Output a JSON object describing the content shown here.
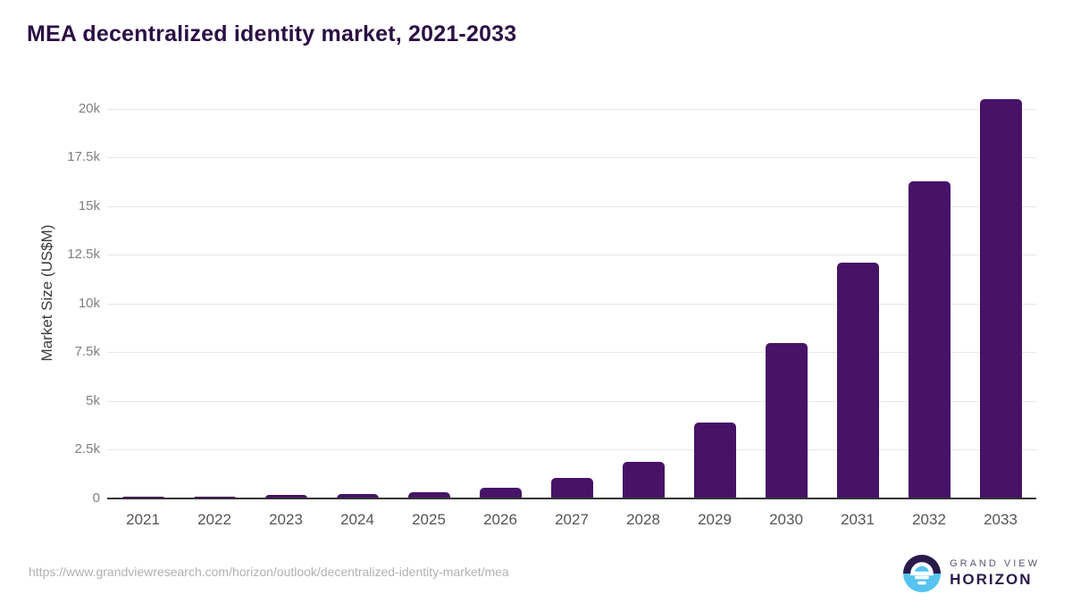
{
  "page": {
    "title": "MEA decentralized identity market, 2021-2033",
    "source_url": "https://www.grandviewresearch.com/horizon/outlook/decentralized-identity-market/mea",
    "logo": {
      "top_text": "GRAND VIEW",
      "bottom_text": "HORIZON"
    }
  },
  "colors": {
    "bar": "#461367",
    "title_text": "#2b0f44",
    "gridline": "#e7e7e7",
    "axis_line": "#333333",
    "y_tick_text": "#7f7f7f",
    "x_tick_text": "#555555",
    "axis_title_text": "#3a3a3a",
    "url_text": "#b1b1b1",
    "logo_purple": "#2a1a4a",
    "logo_blue": "#56c3f0"
  },
  "chart_data": {
    "type": "bar",
    "title": "MEA decentralized identity market, 2021-2033",
    "xlabel": "",
    "ylabel": "Market Size (US$M)",
    "unit": "US$M",
    "categories": [
      "2021",
      "2022",
      "2023",
      "2024",
      "2025",
      "2026",
      "2027",
      "2028",
      "2029",
      "2030",
      "2031",
      "2032",
      "2033"
    ],
    "values": [
      95,
      115,
      180,
      220,
      335,
      530,
      1040,
      1900,
      3900,
      8000,
      12100,
      16300,
      20500
    ],
    "ylim": [
      0,
      21100
    ],
    "yticks": [
      {
        "value": 0,
        "label": "0"
      },
      {
        "value": 2500,
        "label": "2.5k"
      },
      {
        "value": 5000,
        "label": "5k"
      },
      {
        "value": 7500,
        "label": "7.5k"
      },
      {
        "value": 10000,
        "label": "10k"
      },
      {
        "value": 12500,
        "label": "12.5k"
      },
      {
        "value": 15000,
        "label": "15k"
      },
      {
        "value": 17500,
        "label": "17.5k"
      },
      {
        "value": 20000,
        "label": "20k"
      }
    ],
    "grid": true,
    "legend_position": "none"
  }
}
